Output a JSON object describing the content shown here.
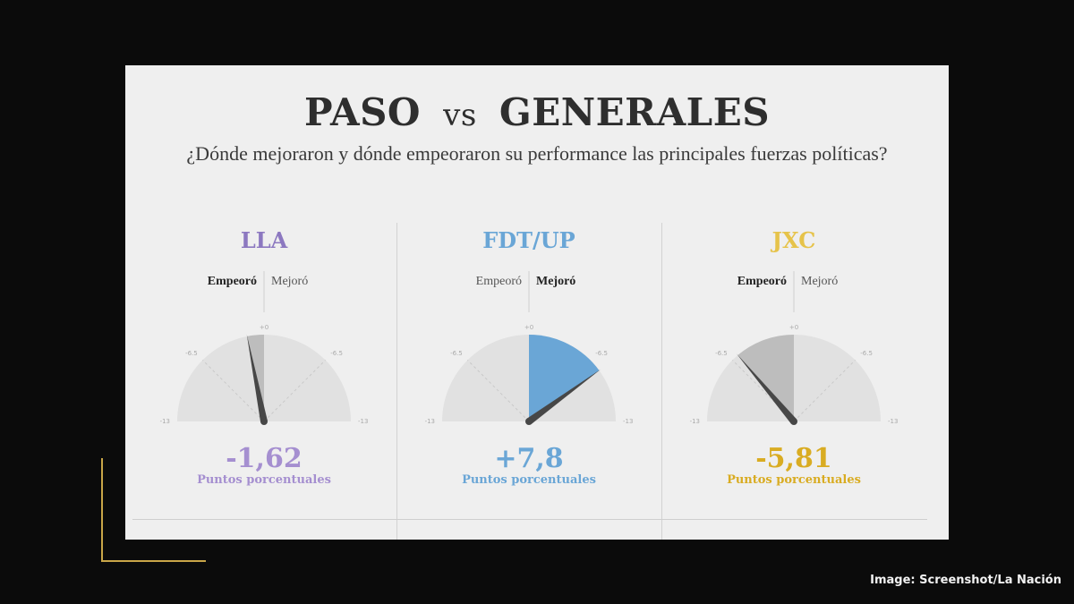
{
  "title": {
    "left": "PASO",
    "vs": "vs",
    "right": "GENERALES"
  },
  "subtitle": "¿Dónde mejoraron y dónde empeoraron su performance las principales fuerzas políticas?",
  "credit": "Image: Screenshot/La Nación",
  "chart_data": {
    "type": "gauge",
    "scale": {
      "min": -13,
      "max": 13,
      "ticks": [
        "-13",
        "-6.5",
        "+0",
        "-6.5",
        "-13"
      ]
    },
    "labels": {
      "worse": "Empeoró",
      "better": "Mejoró",
      "unit": "Puntos porcentuales"
    },
    "gauges": [
      {
        "name": "LLA",
        "value": -1.62,
        "value_label": "-1,62",
        "color": "#8c78c0",
        "value_color": "#a58fd0",
        "bold": "worse"
      },
      {
        "name": "FDT/UP",
        "value": 7.8,
        "value_label": "+7,8",
        "color": "#6aa6d6",
        "value_color": "#6aa6d6",
        "bold": "better"
      },
      {
        "name": "JXC",
        "value": -5.81,
        "value_label": "-5,81",
        "color": "#e6c34a",
        "value_color": "#d9ac22",
        "bold": "worse"
      }
    ]
  }
}
